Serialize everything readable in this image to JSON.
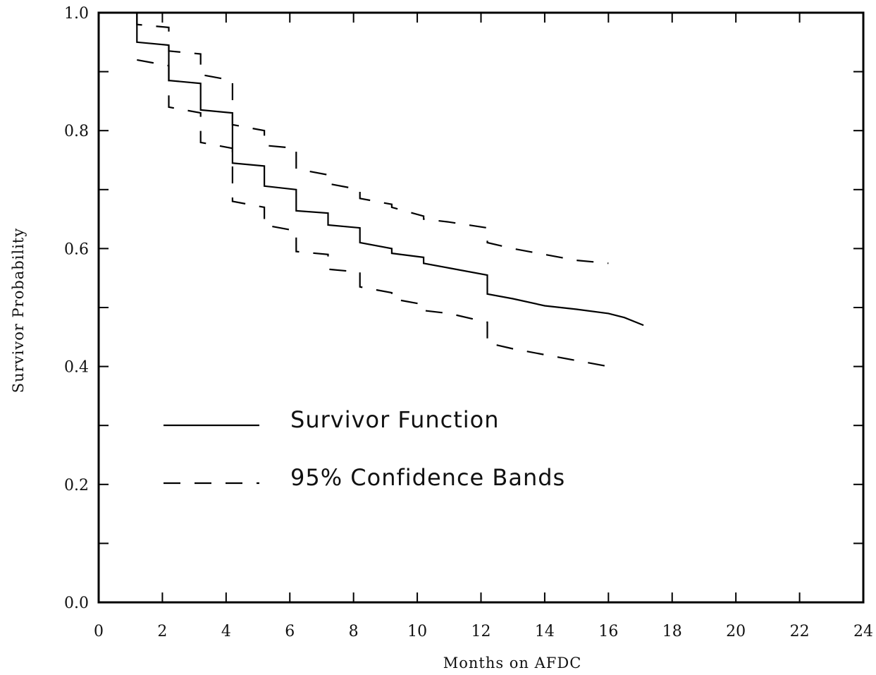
{
  "chart_data": {
    "type": "line",
    "title": "",
    "xlabel": "Months on AFDC",
    "ylabel": "Survivor Probability",
    "xlim": [
      0,
      24
    ],
    "ylim": [
      0,
      1.0
    ],
    "x_ticks": [
      "0",
      "2",
      "4",
      "6",
      "8",
      "10",
      "12",
      "14",
      "16",
      "18",
      "20",
      "22",
      "24"
    ],
    "y_ticks": [
      "0.0",
      "0.2",
      "0.4",
      "0.6",
      "0.8",
      "1.0"
    ],
    "grid": false,
    "legend_position": "center-left",
    "series": [
      {
        "name": "Survivor Function",
        "style": "solid",
        "color": "#000000",
        "x": [
          1.2,
          1.2,
          2.2,
          2.2,
          3.2,
          3.2,
          4.2,
          4.2,
          5.2,
          5.2,
          6.2,
          6.2,
          7.2,
          7.2,
          8.2,
          8.2,
          9.2,
          9.2,
          10.2,
          10.2,
          11.0,
          12.2,
          12.2,
          13.0,
          14.0,
          15.0,
          16.0,
          16.5,
          17.1
        ],
        "y": [
          1.0,
          0.95,
          0.945,
          0.885,
          0.88,
          0.835,
          0.83,
          0.745,
          0.74,
          0.706,
          0.7,
          0.664,
          0.66,
          0.64,
          0.635,
          0.61,
          0.6,
          0.592,
          0.585,
          0.575,
          0.567,
          0.555,
          0.523,
          0.515,
          0.503,
          0.497,
          0.49,
          0.483,
          0.47
        ]
      },
      {
        "name": "95% Confidence Bands",
        "style": "dashed",
        "color": "#000000",
        "upper": {
          "x": [
            1.2,
            1.2,
            2.2,
            2.2,
            3.2,
            3.2,
            4.2,
            4.2,
            5.2,
            5.2,
            6.2,
            6.2,
            7.2,
            7.2,
            8.2,
            8.2,
            9.2,
            9.2,
            10.2,
            10.2,
            11.0,
            12.2,
            12.2,
            13.0,
            14.0,
            15.0,
            16.0
          ],
          "y": [
            1.0,
            0.98,
            0.975,
            0.935,
            0.93,
            0.895,
            0.885,
            0.81,
            0.8,
            0.775,
            0.77,
            0.735,
            0.725,
            0.71,
            0.7,
            0.685,
            0.675,
            0.67,
            0.655,
            0.65,
            0.645,
            0.635,
            0.61,
            0.6,
            0.59,
            0.58,
            0.575
          ]
        },
        "lower": {
          "x": [
            1.2,
            2.2,
            2.2,
            3.2,
            3.2,
            4.2,
            4.2,
            5.2,
            5.2,
            6.2,
            6.2,
            7.2,
            7.2,
            8.2,
            8.2,
            9.2,
            9.2,
            10.2,
            10.2,
            11.0,
            12.2,
            12.2,
            13.0,
            14.0,
            15.0,
            16.0
          ],
          "y": [
            0.92,
            0.91,
            0.84,
            0.83,
            0.78,
            0.77,
            0.68,
            0.67,
            0.64,
            0.63,
            0.595,
            0.59,
            0.565,
            0.56,
            0.535,
            0.525,
            0.515,
            0.505,
            0.495,
            0.49,
            0.475,
            0.44,
            0.43,
            0.42,
            0.41,
            0.4
          ]
        }
      }
    ]
  }
}
